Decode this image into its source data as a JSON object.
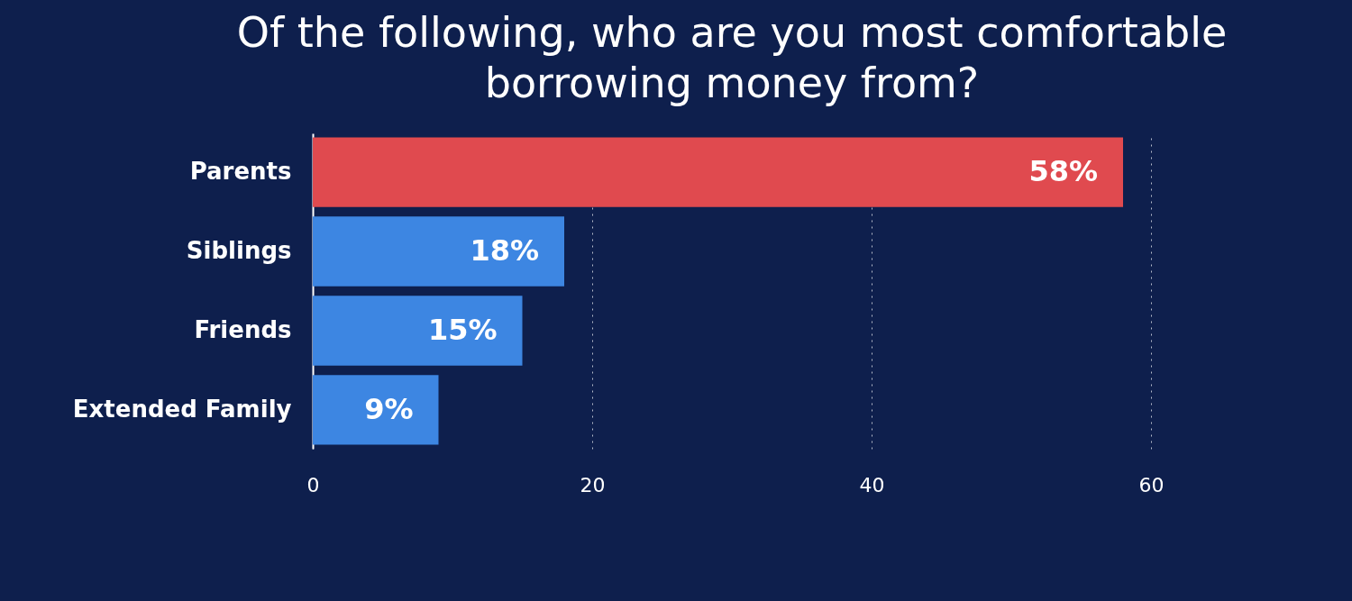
{
  "chart_data": {
    "type": "bar",
    "orientation": "horizontal",
    "title": "Of the following, who are you most comfortable borrowing money from?",
    "categories": [
      "Parents",
      "Siblings",
      "Friends",
      "Extended Family"
    ],
    "values": [
      58,
      18,
      15,
      9
    ],
    "value_labels": [
      "58%",
      "18%",
      "15%",
      "9%"
    ],
    "colors": [
      "#e04a4f",
      "#3d86e2",
      "#3d86e2",
      "#3d86e2"
    ],
    "xlim": [
      0,
      60
    ],
    "xticks": [
      0,
      20,
      40,
      60
    ],
    "grid": "x"
  }
}
